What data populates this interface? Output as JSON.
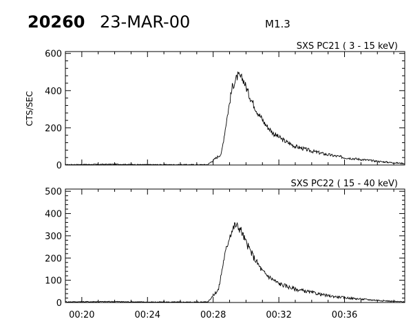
{
  "header": {
    "event_id": "20260",
    "date": "23-MAR-00",
    "flare_class": "M1.3"
  },
  "chart_data": [
    {
      "type": "line",
      "title": "SXS PC21  (  3 - 15 keV)",
      "ylabel": "CTS/SEC",
      "xlabel": "",
      "xlim": [
        "00:19:00",
        "00:39:40"
      ],
      "ylim": [
        0,
        610
      ],
      "y_ticks": [
        0,
        200,
        400,
        600
      ],
      "x_ticks": [
        "00:20",
        "00:24",
        "00:28",
        "00:32",
        "00:36"
      ],
      "grid": false,
      "series": [
        {
          "x": [
            "00:19:00",
            "00:22:00",
            "00:24:00",
            "00:27:00",
            "00:27:40",
            "00:28:30",
            "00:28:50",
            "00:29:10",
            "00:29:30",
            "00:29:50",
            "00:30:10",
            "00:30:40",
            "00:31:10",
            "00:31:40",
            "00:32:20",
            "00:33:00",
            "00:34:00",
            "00:35:00",
            "00:36:00",
            "00:37:00",
            "00:38:00",
            "00:39:00",
            "00:39:40"
          ],
          "y": [
            2,
            4,
            2,
            2,
            2,
            60,
            250,
            420,
            480,
            460,
            380,
            290,
            220,
            170,
            130,
            100,
            75,
            55,
            40,
            30,
            20,
            12,
            8
          ]
        }
      ]
    },
    {
      "type": "line",
      "title": "SXS PC22  ( 15 - 40 keV)",
      "ylabel": "",
      "xlabel": "",
      "xlim": [
        "00:19:00",
        "00:39:40"
      ],
      "ylim": [
        0,
        510
      ],
      "y_ticks": [
        0,
        100,
        200,
        300,
        400,
        500
      ],
      "x_ticks": [
        "00:20",
        "00:24",
        "00:28",
        "00:32",
        "00:36"
      ],
      "grid": false,
      "series": [
        {
          "x": [
            "00:19:00",
            "00:22:00",
            "00:24:00",
            "00:27:00",
            "00:27:40",
            "00:28:20",
            "00:28:40",
            "00:29:00",
            "00:29:20",
            "00:29:40",
            "00:30:00",
            "00:30:30",
            "00:31:00",
            "00:31:30",
            "00:32:00",
            "00:33:00",
            "00:34:00",
            "00:35:00",
            "00:36:00",
            "00:37:00",
            "00:38:00",
            "00:39:00",
            "00:39:40"
          ],
          "y": [
            3,
            4,
            2,
            2,
            3,
            60,
            200,
            300,
            350,
            330,
            270,
            200,
            140,
            110,
            85,
            60,
            45,
            30,
            22,
            15,
            10,
            5,
            3
          ]
        }
      ]
    }
  ]
}
